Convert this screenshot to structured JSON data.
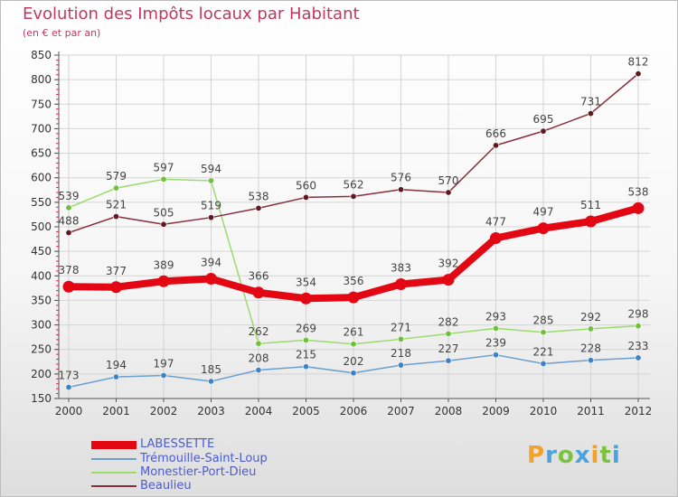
{
  "header": {
    "title": "Evolution des Impôts locaux par Habitant",
    "subtitle": "(en € et par an)"
  },
  "branding": {
    "logo_text": "Proxiti",
    "letters": [
      {
        "ch": "P",
        "color": "#f2a12b"
      },
      {
        "ch": "r",
        "color": "#4aa3df"
      },
      {
        "ch": "o",
        "color": "#7cc242"
      },
      {
        "ch": "x",
        "color": "#4aa3df"
      },
      {
        "ch": "i",
        "color": "#f2a12b"
      },
      {
        "ch": "t",
        "color": "#7cc242"
      },
      {
        "ch": "i",
        "color": "#4aa3df"
      }
    ]
  },
  "chart_data": {
    "type": "line",
    "title": "Evolution des Impôts locaux par Habitant",
    "subtitle": "(en € et par an)",
    "xlabel": "",
    "ylabel": "",
    "x": [
      "2000",
      "2001",
      "2002",
      "2003",
      "2004",
      "2005",
      "2006",
      "2007",
      "2008",
      "2009",
      "2010",
      "2011",
      "2012"
    ],
    "ylim": [
      150,
      850
    ],
    "yticks": [
      150,
      200,
      250,
      300,
      350,
      400,
      450,
      500,
      550,
      600,
      650,
      700,
      750,
      800,
      850
    ],
    "grid": true,
    "legend_position": "bottom-left",
    "series": [
      {
        "name": "LABESSETTE",
        "color": "#e30613",
        "emphasis": true,
        "values": [
          378,
          377,
          389,
          394,
          366,
          354,
          356,
          383,
          392,
          477,
          497,
          511,
          538
        ]
      },
      {
        "name": "Trémouille-Saint-Loup",
        "color": "#6a9fd0",
        "marker_color": "#3d83c6",
        "values": [
          173,
          194,
          197,
          185,
          208,
          215,
          202,
          218,
          227,
          239,
          221,
          228,
          233
        ]
      },
      {
        "name": "Monestier-Port-Dieu",
        "color": "#9bdb6e",
        "marker_color": "#6fc03b",
        "values": [
          539,
          579,
          597,
          594,
          262,
          269,
          261,
          271,
          282,
          293,
          285,
          292,
          298
        ]
      },
      {
        "name": "Beaulieu",
        "color": "#8a2e3c",
        "marker_color": "#5e1a22",
        "values": [
          488,
          521,
          505,
          519,
          538,
          560,
          562,
          576,
          570,
          666,
          695,
          731,
          812
        ]
      }
    ]
  }
}
